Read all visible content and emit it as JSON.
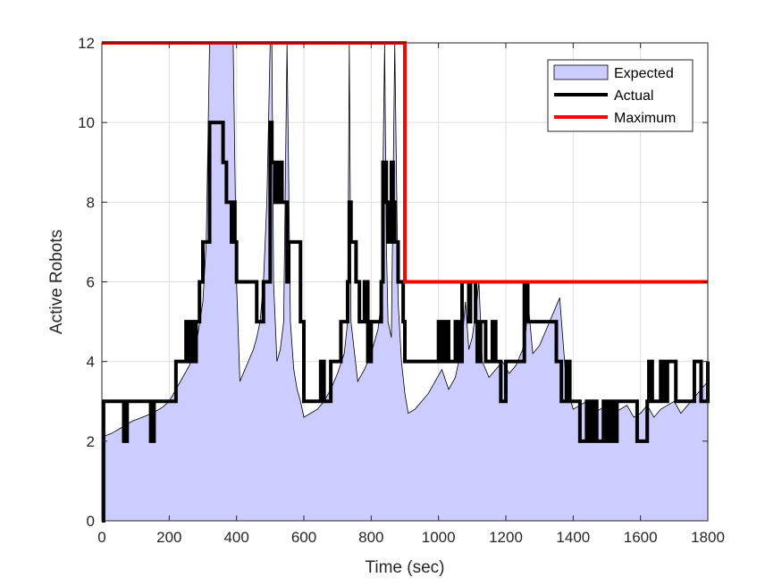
{
  "chart_data": {
    "type": "line",
    "title": "",
    "xlabel": "Time (sec)",
    "ylabel": "Active Robots",
    "xlim": [
      0,
      1800
    ],
    "ylim": [
      0,
      12
    ],
    "xticks": [
      0,
      200,
      400,
      600,
      800,
      1000,
      1200,
      1400,
      1600,
      1800
    ],
    "yticks": [
      0,
      2,
      4,
      6,
      8,
      10,
      12
    ],
    "grid": true,
    "legend_position": "top-right",
    "colors": {
      "expected_fill": "#ccccff",
      "expected_edge": "#000000",
      "actual": "#000000",
      "maximum": "#ff0000"
    },
    "series": [
      {
        "name": "Expected",
        "style": "area",
        "x": [
          0,
          30,
          60,
          90,
          120,
          150,
          180,
          200,
          220,
          240,
          260,
          280,
          300,
          310,
          320,
          330,
          340,
          350,
          360,
          370,
          380,
          390,
          395,
          400,
          410,
          420,
          430,
          440,
          450,
          460,
          470,
          480,
          490,
          500,
          505,
          510,
          520,
          530,
          540,
          550,
          560,
          570,
          580,
          590,
          600,
          620,
          640,
          660,
          680,
          700,
          720,
          730,
          735,
          740,
          760,
          780,
          800,
          820,
          830,
          840,
          845,
          850,
          860,
          870,
          880,
          890,
          900,
          910,
          930,
          950,
          970,
          990,
          1010,
          1030,
          1050,
          1060,
          1070,
          1080,
          1090,
          1100,
          1110,
          1120,
          1130,
          1150,
          1170,
          1190,
          1210,
          1230,
          1250,
          1260,
          1265,
          1280,
          1300,
          1320,
          1340,
          1360,
          1380,
          1400,
          1420,
          1440,
          1460,
          1480,
          1500,
          1520,
          1540,
          1560,
          1580,
          1600,
          1620,
          1640,
          1660,
          1680,
          1700,
          1720,
          1740,
          1760,
          1780,
          1800
        ],
        "y": [
          2.1,
          2.2,
          2.35,
          2.5,
          2.6,
          2.7,
          2.85,
          3.0,
          3.3,
          3.6,
          3.9,
          4.4,
          5.5,
          7.0,
          12,
          12,
          12,
          12,
          12,
          12,
          12,
          12,
          9.0,
          6.0,
          3.5,
          3.7,
          3.9,
          4.1,
          4.3,
          4.6,
          5.0,
          6.0,
          8.0,
          12,
          12,
          6.0,
          4.0,
          4.3,
          5.0,
          12,
          5.0,
          3.8,
          3.3,
          3.0,
          2.6,
          2.7,
          2.8,
          3.0,
          3.3,
          3.7,
          4.2,
          5.0,
          12,
          5.0,
          3.5,
          3.8,
          4.2,
          4.8,
          5.5,
          12,
          7.0,
          5.0,
          4.6,
          12,
          5.5,
          4.0,
          3.2,
          2.7,
          2.8,
          3.0,
          3.2,
          3.5,
          3.8,
          3.3,
          3.6,
          4.0,
          4.5,
          5.5,
          4.3,
          4.6,
          5.2,
          6.0,
          4.0,
          3.6,
          3.8,
          4.0,
          3.7,
          3.9,
          4.3,
          4.8,
          5.6,
          4.2,
          4.4,
          4.8,
          5.2,
          5.6,
          3.4,
          2.8,
          2.9,
          3.0,
          2.7,
          2.8,
          2.9,
          2.7,
          2.8,
          2.9,
          2.6,
          2.7,
          2.9,
          2.6,
          2.8,
          2.9,
          3.0,
          2.7,
          2.9,
          3.1,
          3.3,
          3.5
        ]
      },
      {
        "name": "Actual",
        "style": "step",
        "x": [
          0,
          5,
          65,
          75,
          145,
          155,
          220,
          250,
          255,
          265,
          275,
          280,
          290,
          300,
          320,
          360,
          370,
          385,
          390,
          395,
          400,
          460,
          480,
          500,
          505,
          515,
          525,
          535,
          550,
          555,
          590,
          600,
          650,
          660,
          680,
          710,
          730,
          735,
          740,
          755,
          765,
          780,
          790,
          800,
          830,
          835,
          845,
          850,
          860,
          865,
          870,
          880,
          895,
          900,
          950,
          1000,
          1010,
          1020,
          1030,
          1050,
          1060,
          1070,
          1090,
          1095,
          1110,
          1115,
          1125,
          1140,
          1160,
          1170,
          1185,
          1200,
          1250,
          1255,
          1265,
          1290,
          1300,
          1350,
          1365,
          1380,
          1390,
          1420,
          1440,
          1450,
          1460,
          1470,
          1490,
          1500,
          1510,
          1520,
          1530,
          1590,
          1620,
          1625,
          1635,
          1660,
          1670,
          1680,
          1700,
          1705,
          1715,
          1760,
          1780,
          1800
        ],
        "y": [
          0,
          3,
          2,
          3,
          2,
          3,
          4,
          5,
          4,
          5,
          4,
          5,
          6,
          7,
          10,
          9,
          8,
          7,
          8,
          7,
          6,
          5,
          6,
          10,
          9,
          8,
          9,
          8,
          6,
          7,
          5,
          3,
          4,
          3,
          4,
          5,
          6,
          8,
          7,
          6,
          5,
          6,
          4,
          5,
          6,
          9,
          8,
          7,
          9,
          8,
          7,
          6,
          5,
          4,
          4,
          5,
          4,
          5,
          4,
          5,
          4,
          6,
          5,
          6,
          5,
          4,
          5,
          4,
          5,
          4,
          3,
          4,
          4,
          6,
          5,
          5,
          5,
          4,
          3,
          4,
          3,
          2,
          3,
          2,
          3,
          2,
          3,
          2,
          3,
          2,
          3,
          2,
          3,
          4,
          3,
          4,
          3,
          4,
          4,
          3,
          3,
          4,
          3,
          4
        ]
      },
      {
        "name": "Maximum",
        "style": "step",
        "x": [
          0,
          900,
          1800
        ],
        "y": [
          12,
          6,
          6
        ]
      }
    ]
  }
}
